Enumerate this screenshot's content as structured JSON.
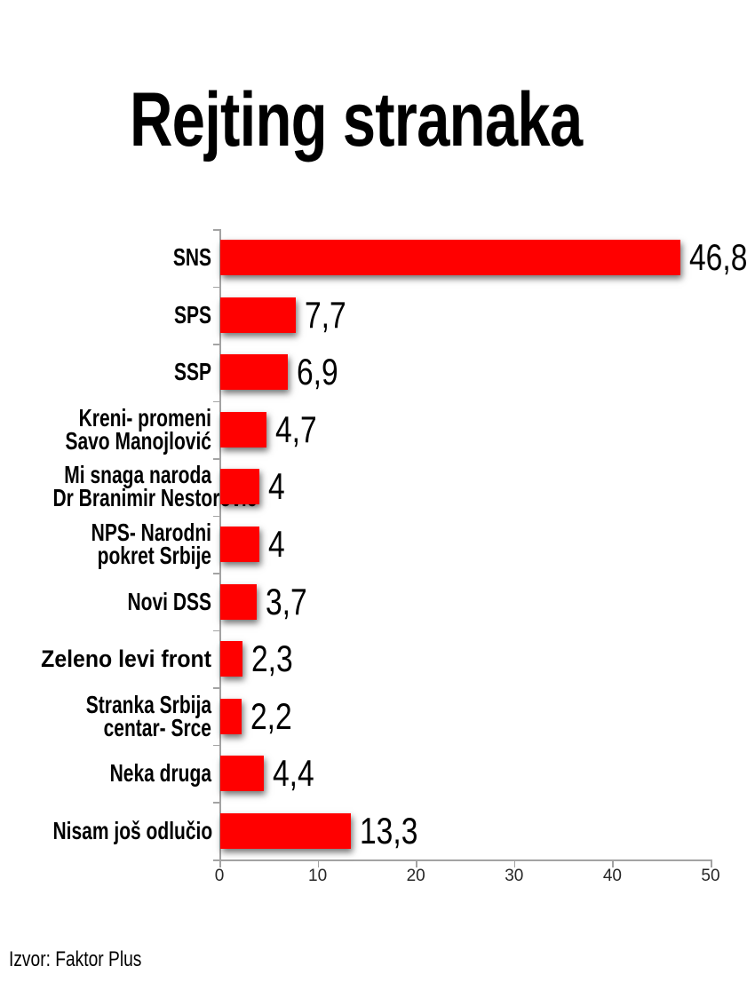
{
  "title": "Rejting stranaka",
  "source": "Izvor: Faktor Plus",
  "colors": {
    "bar": "#ff0000",
    "axis": "#a3a3a3",
    "text": "#000000",
    "tick_label": "#262626",
    "background": "#ffffff"
  },
  "chart_data": {
    "type": "bar",
    "orientation": "horizontal",
    "title": "Rejting stranaka",
    "categories": [
      {
        "lines": [
          "SNS"
        ]
      },
      {
        "lines": [
          "SPS"
        ]
      },
      {
        "lines": [
          "SSP"
        ]
      },
      {
        "lines": [
          "Kreni- promeni",
          "Savo Manojlović"
        ]
      },
      {
        "lines": [
          "Mi snaga naroda",
          "Dr Branimir Nestorović"
        ]
      },
      {
        "lines": [
          "NPS- Narodni",
          "pokret Srbije"
        ]
      },
      {
        "lines": [
          "Novi DSS"
        ]
      },
      {
        "lines": [
          "Zeleno levi front"
        ],
        "wide": true
      },
      {
        "lines": [
          "Stranka Srbija",
          "centar- Srce"
        ]
      },
      {
        "lines": [
          "Neka druga"
        ]
      },
      {
        "lines": [
          "Nisam još odlučio"
        ]
      }
    ],
    "values": [
      46.8,
      7.7,
      6.9,
      4.7,
      4,
      4,
      3.7,
      2.3,
      2.2,
      4.4,
      13.3
    ],
    "value_labels": [
      "46,8",
      "7,7",
      "6,9",
      "4,7",
      "4",
      "4",
      "3,7",
      "2,3",
      "2,2",
      "4,4",
      "13,3"
    ],
    "xlabel": "",
    "ylabel": "",
    "xlim": [
      0,
      50
    ],
    "xticks": [
      0,
      10,
      20,
      30,
      40,
      50
    ],
    "grid": false,
    "legend": false,
    "bar_color": "#ff0000",
    "data_labels": true,
    "source": "Izvor: Faktor Plus"
  }
}
